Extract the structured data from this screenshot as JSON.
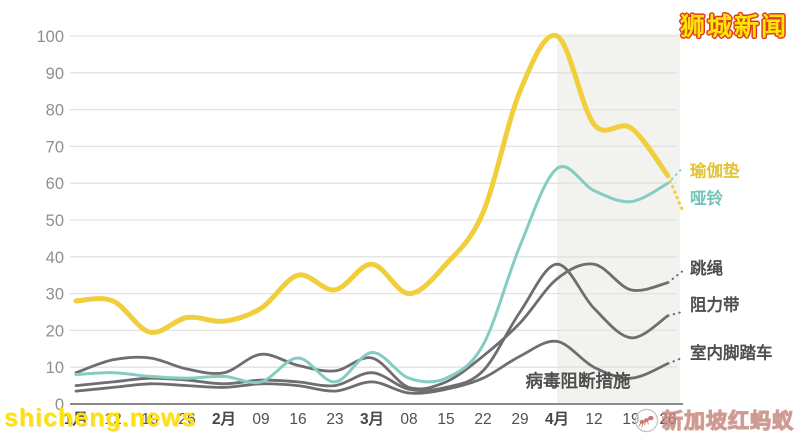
{
  "watermarks": {
    "top_right": "狮城新闻",
    "bottom_left": "shicheng.news",
    "bottom_right": "新加坡红蚂蚁"
  },
  "chart_data": {
    "type": "line",
    "description_visible_text_only": "Search-interest style trend lines, weekly, Jan-Apr",
    "categories": [
      "1月",
      "12",
      "19",
      "26",
      "2月",
      "09",
      "16",
      "23",
      "3月",
      "08",
      "15",
      "22",
      "29",
      "4月",
      "12",
      "19",
      "26"
    ],
    "ylim": [
      0,
      100
    ],
    "ytick_step": 10,
    "yticks": [
      0,
      10,
      20,
      30,
      40,
      50,
      60,
      70,
      80,
      90,
      100
    ],
    "grid": "horizontal",
    "legend_position": "right-of-lines",
    "annotation": {
      "text": "病毒阻断措施"
    },
    "highlight_band": {
      "starts_at_category": "4月",
      "start_category_index": 13,
      "color": "#F2F2EF"
    },
    "series": [
      {
        "id": "yoga-mat",
        "name": "瑜伽垫",
        "color": "#F0CE3C",
        "width": 5,
        "label_color": "#E4C235",
        "label_value": 63.5,
        "label_bold": true,
        "values": [
          28,
          28,
          19.5,
          23.5,
          22.5,
          26,
          35,
          31,
          38,
          30,
          38,
          52,
          85,
          100,
          76,
          75,
          62
        ],
        "partial_next": 53
      },
      {
        "id": "dumbbell",
        "name": "哑铃",
        "color": "#85CCC1",
        "width": 3,
        "label_color": "#74C4B7",
        "label_value": 56,
        "label_bold": true,
        "values": [
          8,
          8.5,
          7.5,
          7,
          7.5,
          6,
          12.5,
          6,
          14,
          7,
          7,
          16,
          43,
          64,
          58,
          55,
          60
        ],
        "partial_next": 64
      },
      {
        "id": "jump-rope",
        "name": "跳绳",
        "color": "#6E6E6E",
        "width": 2.8,
        "label_color": "#4E4E4E",
        "label_value": 37,
        "label_bold": false,
        "values": [
          8.5,
          12,
          12.5,
          9.5,
          8.5,
          13.5,
          10.5,
          9,
          12.5,
          4.5,
          6,
          13,
          22,
          34,
          38,
          31,
          33
        ],
        "partial_next": 36
      },
      {
        "id": "resistance-band",
        "name": "阻力带",
        "color": "#6E6E6E",
        "width": 2.8,
        "label_color": "#4E4E4E",
        "label_value": 27,
        "label_bold": false,
        "values": [
          5,
          6,
          7,
          6.5,
          5.5,
          6.5,
          6,
          5,
          8.5,
          4,
          4.5,
          9,
          25,
          38,
          26,
          18,
          24
        ],
        "partial_next": 25
      },
      {
        "id": "indoor-bike",
        "name": "室内脚踏车",
        "color": "#6E6E6E",
        "width": 2.8,
        "label_color": "#4E4E4E",
        "label_value": 14,
        "label_bold": false,
        "values": [
          3.5,
          4.5,
          5.5,
          5,
          4.5,
          5.5,
          5,
          3.5,
          6,
          3,
          4,
          7,
          13,
          17,
          10,
          7,
          11
        ],
        "partial_next": 12.5
      }
    ]
  }
}
